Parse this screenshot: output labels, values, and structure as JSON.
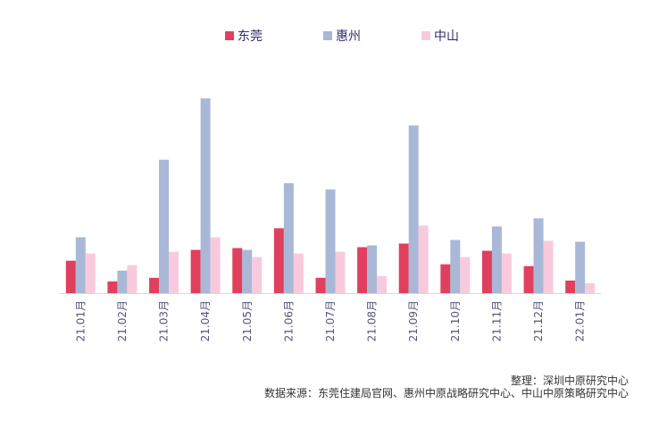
{
  "chart_data": {
    "type": "bar",
    "title": "",
    "xlabel": "",
    "ylabel": "",
    "categories": [
      "21.01月",
      "21.02月",
      "21.03月",
      "21.04月",
      "21.05月",
      "21.06月",
      "21.07月",
      "21.08月",
      "21.09月",
      "21.10月",
      "21.11月",
      "21.12月",
      "22.01月"
    ],
    "series": [
      {
        "name": "东莞",
        "color": "#e0405e",
        "values": [
          36,
          13,
          17,
          48,
          50,
          72,
          17,
          51,
          55,
          32,
          47,
          30,
          14
        ]
      },
      {
        "name": "惠州",
        "color": "#a9b8d6",
        "values": [
          62,
          25,
          148,
          216,
          48,
          122,
          115,
          53,
          186,
          59,
          74,
          83,
          57
        ]
      },
      {
        "name": "中山",
        "color": "#f9cadd",
        "values": [
          44,
          31,
          46,
          62,
          40,
          44,
          46,
          19,
          75,
          40,
          44,
          58,
          11
        ]
      }
    ],
    "ylim": [
      0,
      230
    ],
    "legend_position": "top-center",
    "grid": false
  },
  "footer": {
    "credit": "整理：深圳中原研究中心",
    "source": "数据来源：东莞住建局官网、惠州中原战略研究中心、中山中原策略研究中心"
  }
}
